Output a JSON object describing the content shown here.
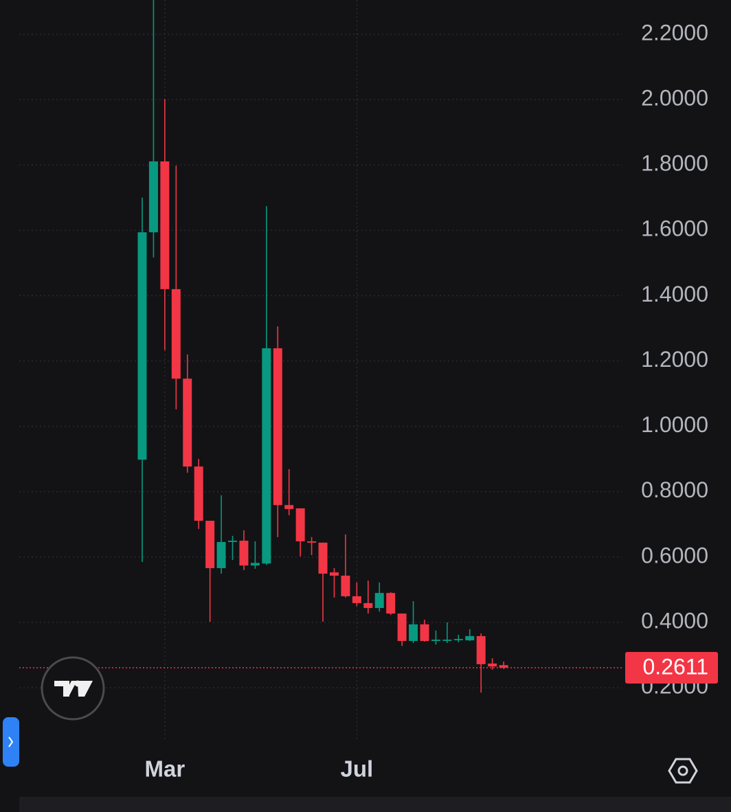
{
  "chart_data": {
    "type": "candlestick",
    "categories": [
      null,
      null,
      "Mar",
      null,
      null,
      null,
      null,
      null,
      null,
      null,
      null,
      null,
      null,
      null,
      null,
      null,
      null,
      null,
      null,
      "Jul",
      null,
      null,
      null,
      null,
      null,
      null,
      null,
      null,
      null,
      null,
      null,
      null,
      null
    ],
    "open": [
      0.898,
      1.594,
      1.811,
      1.42,
      1.146,
      0.877,
      0.711,
      0.566,
      0.646,
      0.65,
      0.574,
      0.58,
      1.239,
      0.759,
      0.749,
      0.648,
      0.644,
      0.553,
      0.543,
      0.48,
      0.459,
      0.444,
      0.49,
      0.427,
      0.343,
      0.394,
      0.343,
      0.345,
      0.347,
      0.345,
      0.358,
      0.274,
      0.269
    ],
    "high": [
      1.7,
      2.33,
      2.002,
      1.798,
      1.22,
      0.9,
      0.711,
      0.789,
      0.665,
      0.682,
      0.648,
      1.674,
      1.306,
      0.869,
      0.749,
      0.661,
      0.644,
      0.566,
      0.669,
      0.522,
      0.528,
      0.522,
      0.492,
      0.427,
      0.465,
      0.408,
      0.375,
      0.4,
      0.362,
      0.379,
      0.366,
      0.29,
      0.28
    ],
    "low": [
      0.585,
      1.517,
      1.233,
      1.052,
      0.858,
      0.686,
      0.402,
      0.549,
      0.591,
      0.56,
      0.564,
      0.576,
      0.661,
      0.728,
      0.602,
      0.606,
      0.402,
      0.476,
      0.476,
      0.45,
      0.427,
      0.433,
      0.423,
      0.328,
      0.337,
      0.341,
      0.332,
      0.337,
      0.339,
      0.343,
      0.185,
      0.255,
      0.257
    ],
    "close": [
      1.594,
      1.811,
      1.42,
      1.146,
      0.877,
      0.711,
      0.566,
      0.646,
      0.65,
      0.574,
      0.582,
      1.239,
      0.759,
      0.747,
      0.648,
      0.644,
      0.549,
      0.543,
      0.48,
      0.459,
      0.444,
      0.49,
      0.427,
      0.343,
      0.394,
      0.343,
      0.347,
      0.347,
      0.349,
      0.358,
      0.272,
      0.265,
      0.2611
    ],
    "up_color": "#089981",
    "down_color": "#f23645",
    "last_price": 0.2611,
    "ylim": [
      0.013,
      2.305
    ],
    "yticks": [
      {
        "value": 0.2,
        "label": "0.2000"
      },
      {
        "value": 0.4,
        "label": "0.4000"
      },
      {
        "value": 0.6,
        "label": "0.6000"
      },
      {
        "value": 0.8,
        "label": "0.8000"
      },
      {
        "value": 1.0,
        "label": "1.0000"
      },
      {
        "value": 1.2,
        "label": "1.2000"
      },
      {
        "value": 1.4,
        "label": "1.4000"
      },
      {
        "value": 1.6,
        "label": "1.6000"
      },
      {
        "value": 1.8,
        "label": "1.8000"
      },
      {
        "value": 2.0,
        "label": "2.0000"
      },
      {
        "value": 2.2,
        "label": "2.2000"
      }
    ],
    "grid": true
  }
}
